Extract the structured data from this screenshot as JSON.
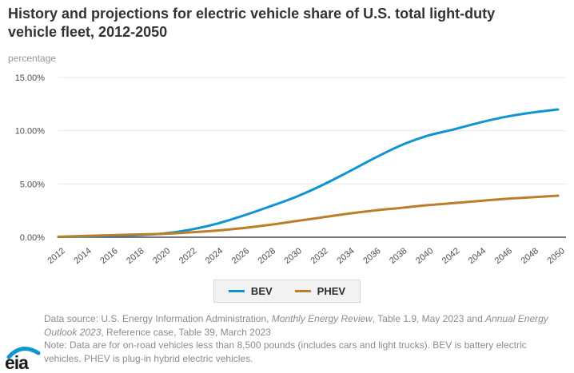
{
  "page": {
    "title": "History and projections for electric vehicle share of U.S. total light-duty vehicle fleet, 2012-2050",
    "unit_label": "percentage"
  },
  "chart_data": {
    "type": "line",
    "title": "History and projections for electric vehicle share of U.S. total light-duty vehicle fleet, 2012-2050",
    "ylabel": "percentage",
    "xlabel": "",
    "x": [
      2012,
      2014,
      2016,
      2018,
      2020,
      2022,
      2024,
      2026,
      2028,
      2030,
      2032,
      2034,
      2036,
      2038,
      2040,
      2042,
      2044,
      2046,
      2048,
      2050
    ],
    "x_tick_labels": [
      "2012",
      "2014",
      "2016",
      "2018",
      "2020",
      "2022",
      "2024",
      "2026",
      "2028",
      "2030",
      "2032",
      "2034",
      "2036",
      "2038",
      "2040",
      "2042",
      "2044",
      "2046",
      "2048",
      "2050"
    ],
    "series": [
      {
        "name": "BEV",
        "color": "#0f94d2",
        "values": [
          0.03,
          0.08,
          0.14,
          0.2,
          0.35,
          0.7,
          1.25,
          2.0,
          2.85,
          3.75,
          4.85,
          6.1,
          7.4,
          8.6,
          9.5,
          10.1,
          10.75,
          11.3,
          11.7,
          12.0
        ]
      },
      {
        "name": "PHEV",
        "color": "#bf7d29",
        "values": [
          0.05,
          0.12,
          0.19,
          0.26,
          0.32,
          0.45,
          0.62,
          0.85,
          1.15,
          1.5,
          1.85,
          2.2,
          2.5,
          2.75,
          3.0,
          3.2,
          3.4,
          3.6,
          3.75,
          3.9
        ]
      }
    ],
    "ylim": [
      0,
      15
    ],
    "y_ticks": [
      {
        "value": 0,
        "label": "0.00%"
      },
      {
        "value": 5,
        "label": "5.00%"
      },
      {
        "value": 10,
        "label": "10.00%"
      },
      {
        "value": 15,
        "label": "15.00%"
      }
    ],
    "grid": true,
    "legend_position": "bottom",
    "colors": {
      "grid_line": "#e7e7e7",
      "axis_line": "#4a4a4a",
      "tick_text": "#4d4d4d"
    }
  },
  "legend": {
    "items": [
      {
        "label": "BEV",
        "color": "#0f94d2"
      },
      {
        "label": "PHEV",
        "color": "#bf7d29"
      }
    ]
  },
  "footer": {
    "logo_text": "eia",
    "logo_accent_color": "#0c96d4",
    "source_segments": [
      {
        "text": "Data source: U.S. Energy Information Administration, ",
        "italic": false
      },
      {
        "text": "Monthly Energy Review",
        "italic": true
      },
      {
        "text": ", Table 1.9, May 2023 and ",
        "italic": false
      },
      {
        "text": "Annual Energy Outlook 2023",
        "italic": true
      },
      {
        "text": ", Reference case, Table 39, March 2023",
        "italic": false
      }
    ],
    "note": "Note: Data are for on-road vehicles less than 8,500 pounds (includes cars and light trucks). BEV is battery electric vehicles. PHEV is plug-in hybrid electric vehicles."
  }
}
